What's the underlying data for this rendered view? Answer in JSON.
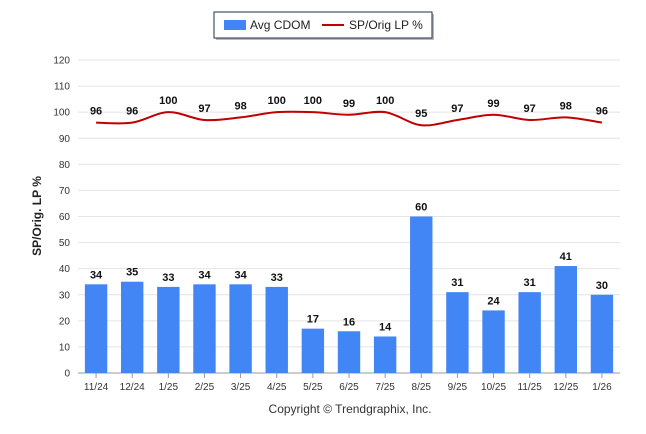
{
  "chart_data": {
    "type": "bar",
    "categories": [
      "11/24",
      "12/24",
      "1/25",
      "2/25",
      "3/25",
      "4/25",
      "5/25",
      "6/25",
      "7/25",
      "8/25",
      "9/25",
      "10/25",
      "11/25",
      "12/25",
      "1/26"
    ],
    "series": [
      {
        "name": "Avg CDOM",
        "type": "bar",
        "color": "#4285f4",
        "values": [
          34,
          35,
          33,
          34,
          34,
          33,
          17,
          16,
          14,
          60,
          31,
          24,
          31,
          41,
          30
        ]
      },
      {
        "name": "SP/Orig LP %",
        "type": "line",
        "color": "#c00000",
        "values": [
          96,
          96,
          100,
          97,
          98,
          100,
          100,
          99,
          100,
          95,
          97,
          99,
          97,
          98,
          96
        ]
      }
    ],
    "ylabel": "SP/Orig. LP %",
    "ylim": [
      0,
      120
    ],
    "yticks": [
      0,
      10,
      20,
      30,
      40,
      50,
      60,
      70,
      80,
      90,
      100,
      110,
      120
    ],
    "grid": true,
    "legend_position": "top-center"
  },
  "footer": {
    "copyright": "Copyright © Trendgraphix, Inc."
  }
}
